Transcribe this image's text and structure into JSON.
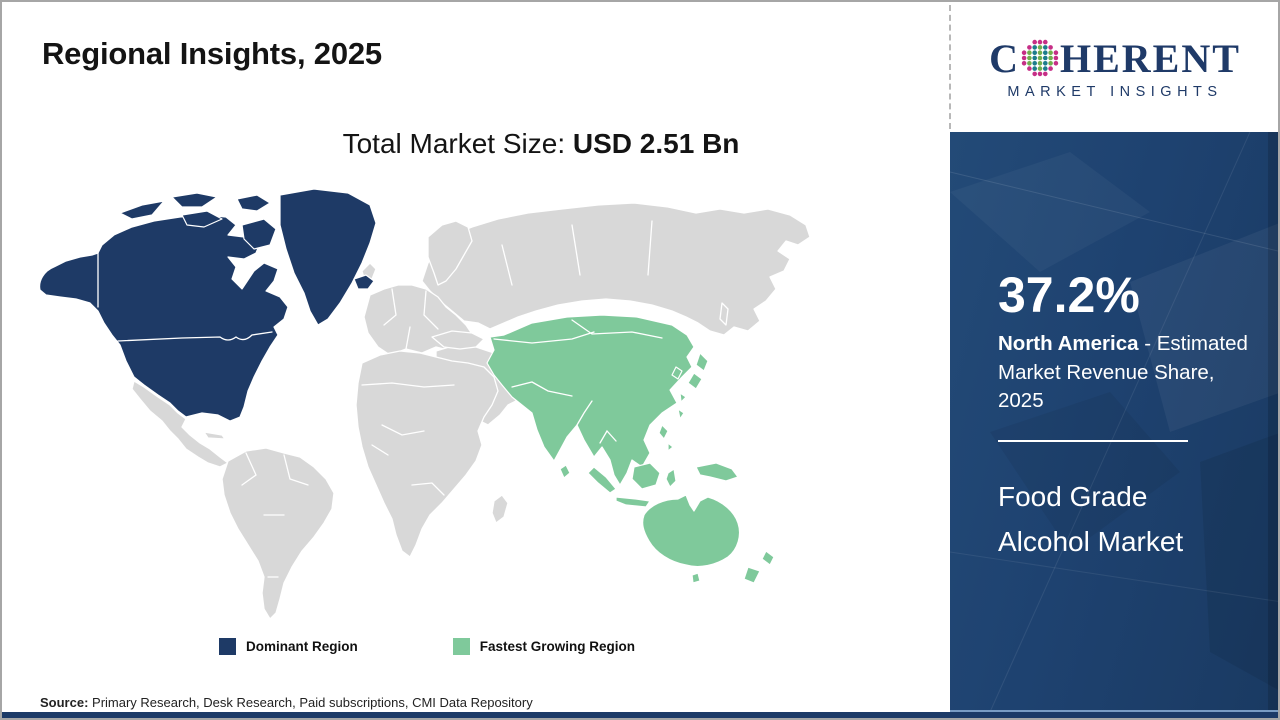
{
  "header": {
    "title": "Regional Insights, 2025"
  },
  "logo": {
    "word_start": "C",
    "word_end": "HERENT",
    "subtitle": "MARKET INSIGHTS",
    "globe_icon": "dotted-globe"
  },
  "market_size": {
    "label": "Total Market Size: ",
    "value": "USD 2.51 Bn"
  },
  "legend": {
    "dominant_label": "Dominant Region",
    "growing_label": "Fastest Growing Region"
  },
  "sidebar": {
    "share_value": "37.2%",
    "share_region": "North America",
    "share_desc": " - Estimated Market Revenue Share, 2025",
    "report_title": "Food Grade Alcohol Market"
  },
  "source": {
    "label": "Source:",
    "text": " Primary Research, Desk Research, Paid subscriptions, CMI Data Repository"
  },
  "colors": {
    "dominant": "#1e3a66",
    "fastest_growing": "#7fc99b",
    "other_land": "#d8d8d8",
    "sidebar_bg": "#1e4270",
    "footer_bar": "#1c3a67",
    "logo_navy": "#1f3a68",
    "logo_teal": "#1c7c8c",
    "logo_green": "#6fae4e",
    "logo_magenta": "#c62e86",
    "text_dark": "#141414",
    "text_light": "#ffffff"
  },
  "chart_data": {
    "type": "choropleth_map",
    "title": "Regional Insights, 2025",
    "subtitle": "Total Market Size: USD 2.51 Bn",
    "total_market_size_usd_bn": 2.51,
    "market": "Food Grade Alcohol Market",
    "legend_position": "bottom-center",
    "legend": [
      {
        "label": "Dominant Region",
        "color": "#1e3a66",
        "region": "North America"
      },
      {
        "label": "Fastest Growing Region",
        "color": "#7fc99b",
        "region": "Asia Pacific"
      }
    ],
    "values": [
      {
        "region": "North America",
        "metric": "Estimated Market Revenue Share, 2025",
        "value_pct": 37.2,
        "role": "Dominant Region"
      },
      {
        "region": "Asia Pacific",
        "role": "Fastest Growing Region"
      }
    ],
    "highlighted_regions": {
      "dominant": [
        "United States",
        "Canada",
        "Alaska",
        "Greenland",
        "Iceland"
      ],
      "fastest_growing": [
        "China",
        "Mongolia",
        "Central Asia",
        "India",
        "South Asia",
        "Southeast Asia",
        "Indonesia",
        "Japan",
        "Korea",
        "Philippines",
        "Papua New Guinea",
        "Australia",
        "New Zealand"
      ]
    },
    "source": "Primary Research, Desk Research, Paid subscriptions, CMI Data Repository"
  }
}
